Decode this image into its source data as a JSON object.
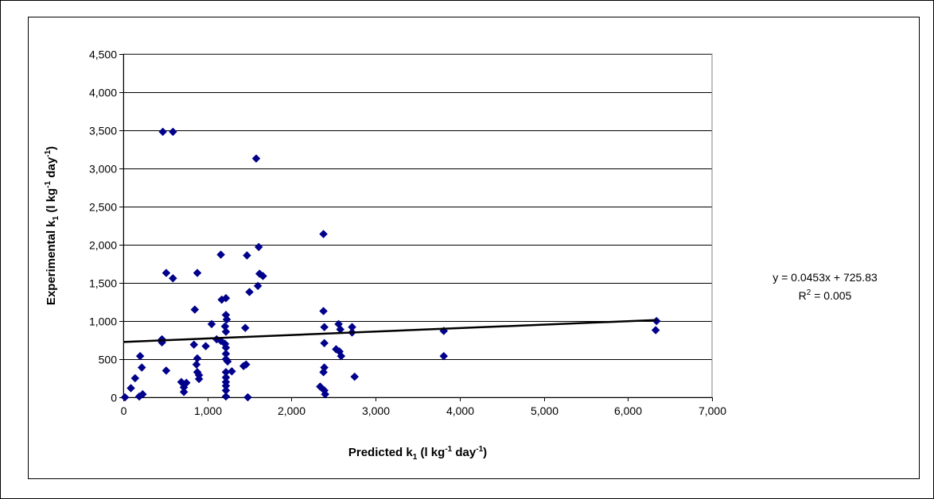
{
  "chart_data": {
    "type": "scatter",
    "xlabel": {
      "main": "Predicted k",
      "sub": "1",
      "pre": " (l kg",
      "sup1": "-1",
      "mid": " day",
      "sup2": "-1",
      "post": ")"
    },
    "ylabel": {
      "main": "Experimental k",
      "sub": "1",
      "pre": " (l kg",
      "sup1": "-1",
      "mid": " day",
      "sup2": "-1",
      "post": ")"
    },
    "xlim": [
      0,
      7000
    ],
    "ylim": [
      0,
      4500
    ],
    "x_ticks": [
      0,
      1000,
      2000,
      3000,
      4000,
      5000,
      6000,
      7000
    ],
    "x_tick_labels": [
      "0",
      "1,000",
      "2,000",
      "3,000",
      "4,000",
      "5,000",
      "6,000",
      "7,000"
    ],
    "y_ticks": [
      0,
      500,
      1000,
      1500,
      2000,
      2500,
      3000,
      3500,
      4000,
      4500
    ],
    "y_tick_labels": [
      "0",
      "500",
      "1,000",
      "1,500",
      "2,000",
      "2,500",
      "3,000",
      "3,500",
      "4,000",
      "4,500"
    ],
    "grid": "horizontal",
    "marker_color": "#00008B",
    "points": [
      {
        "x": 470,
        "y": 3480
      },
      {
        "x": 590,
        "y": 3480
      },
      {
        "x": 1580,
        "y": 3130
      },
      {
        "x": 2380,
        "y": 2140
      },
      {
        "x": 1610,
        "y": 1970
      },
      {
        "x": 1160,
        "y": 1870
      },
      {
        "x": 1470,
        "y": 1860
      },
      {
        "x": 510,
        "y": 1630
      },
      {
        "x": 880,
        "y": 1630
      },
      {
        "x": 1620,
        "y": 1620
      },
      {
        "x": 1660,
        "y": 1590
      },
      {
        "x": 590,
        "y": 1560
      },
      {
        "x": 1600,
        "y": 1460
      },
      {
        "x": 1500,
        "y": 1380
      },
      {
        "x": 1220,
        "y": 1300
      },
      {
        "x": 1170,
        "y": 1280
      },
      {
        "x": 850,
        "y": 1150
      },
      {
        "x": 2380,
        "y": 1130
      },
      {
        "x": 1220,
        "y": 1080
      },
      {
        "x": 1230,
        "y": 1020
      },
      {
        "x": 6340,
        "y": 1000
      },
      {
        "x": 1050,
        "y": 960
      },
      {
        "x": 2560,
        "y": 960
      },
      {
        "x": 1210,
        "y": 930
      },
      {
        "x": 2390,
        "y": 920
      },
      {
        "x": 2720,
        "y": 920
      },
      {
        "x": 1450,
        "y": 910
      },
      {
        "x": 2580,
        "y": 890
      },
      {
        "x": 6330,
        "y": 880
      },
      {
        "x": 3810,
        "y": 870
      },
      {
        "x": 1220,
        "y": 860
      },
      {
        "x": 2720,
        "y": 850
      },
      {
        "x": 1110,
        "y": 760
      },
      {
        "x": 460,
        "y": 760
      },
      {
        "x": 1160,
        "y": 740
      },
      {
        "x": 460,
        "y": 720
      },
      {
        "x": 2390,
        "y": 710
      },
      {
        "x": 1210,
        "y": 700
      },
      {
        "x": 840,
        "y": 690
      },
      {
        "x": 980,
        "y": 670
      },
      {
        "x": 1220,
        "y": 650
      },
      {
        "x": 2530,
        "y": 630
      },
      {
        "x": 2570,
        "y": 600
      },
      {
        "x": 1220,
        "y": 570
      },
      {
        "x": 200,
        "y": 540
      },
      {
        "x": 3810,
        "y": 540
      },
      {
        "x": 2590,
        "y": 540
      },
      {
        "x": 880,
        "y": 510
      },
      {
        "x": 1220,
        "y": 500
      },
      {
        "x": 1240,
        "y": 470
      },
      {
        "x": 870,
        "y": 430
      },
      {
        "x": 1460,
        "y": 430
      },
      {
        "x": 1430,
        "y": 410
      },
      {
        "x": 220,
        "y": 390
      },
      {
        "x": 2390,
        "y": 390
      },
      {
        "x": 510,
        "y": 350
      },
      {
        "x": 1290,
        "y": 340
      },
      {
        "x": 1220,
        "y": 330
      },
      {
        "x": 880,
        "y": 330
      },
      {
        "x": 2380,
        "y": 330
      },
      {
        "x": 900,
        "y": 290
      },
      {
        "x": 2750,
        "y": 270
      },
      {
        "x": 1220,
        "y": 260
      },
      {
        "x": 140,
        "y": 250
      },
      {
        "x": 900,
        "y": 240
      },
      {
        "x": 1220,
        "y": 200
      },
      {
        "x": 690,
        "y": 200
      },
      {
        "x": 750,
        "y": 190
      },
      {
        "x": 1220,
        "y": 150
      },
      {
        "x": 2340,
        "y": 140
      },
      {
        "x": 720,
        "y": 130
      },
      {
        "x": 90,
        "y": 120
      },
      {
        "x": 1220,
        "y": 90
      },
      {
        "x": 2390,
        "y": 90
      },
      {
        "x": 720,
        "y": 70
      },
      {
        "x": 230,
        "y": 40
      },
      {
        "x": 2400,
        "y": 40
      },
      {
        "x": 190,
        "y": 10
      },
      {
        "x": 1220,
        "y": 10
      },
      {
        "x": 20,
        "y": 0
      },
      {
        "x": 1480,
        "y": 0
      }
    ],
    "trendline": {
      "slope": 0.0453,
      "intercept": 725.83,
      "x_range": [
        0,
        6340
      ],
      "color": "#000000"
    },
    "annotation": {
      "equation": "y = 0.0453x + 725.83",
      "r2_prefix": "R",
      "r2_sup": "2",
      "r2_value": " = 0.005"
    }
  }
}
